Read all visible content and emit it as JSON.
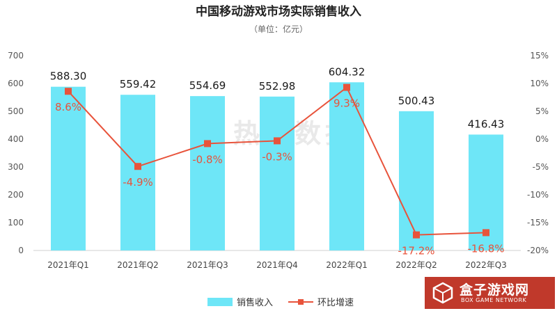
{
  "chart_data": {
    "type": "bar",
    "title": "中国移动游戏市场实际销售收入",
    "subtitle": "（单位：亿元）",
    "categories": [
      "2021年Q1",
      "2021年Q2",
      "2021年Q3",
      "2021年Q4",
      "2022年Q1",
      "2022年Q2",
      "2022年Q3"
    ],
    "series": [
      {
        "name": "销售收入",
        "type": "bar",
        "axis": "left",
        "color": "#6ee6f7",
        "values": [
          588.3,
          559.42,
          554.69,
          552.98,
          604.32,
          500.43,
          416.43
        ],
        "labels": [
          "588.30",
          "559.42",
          "554.69",
          "552.98",
          "604.32",
          "500.43",
          "416.43"
        ]
      },
      {
        "name": "环比增速",
        "type": "line",
        "axis": "right",
        "color": "#e8533b",
        "values": [
          8.6,
          -4.9,
          -0.8,
          -0.3,
          9.3,
          -17.2,
          -16.8
        ],
        "labels": [
          "8.6%",
          "-4.9%",
          "-0.8%",
          "-0.3%",
          "9.3%",
          "-17.2%",
          "-16.8%"
        ]
      }
    ],
    "y_left": {
      "ylim": [
        0,
        700
      ],
      "ticks": [
        "0",
        "100",
        "200",
        "300",
        "400",
        "500",
        "600",
        "700"
      ]
    },
    "y_right": {
      "ylim": [
        -20,
        15
      ],
      "ticks": [
        "-20%",
        "-15%",
        "-10%",
        "-5%",
        "0%",
        "5%",
        "10%",
        "15%"
      ]
    },
    "grid": false,
    "legend": "bottom-center"
  },
  "watermark": "热云数据",
  "logo": {
    "main": "盒子游戏网",
    "sub": "BOX GAME NETWORK",
    "color": "#c0392b"
  }
}
